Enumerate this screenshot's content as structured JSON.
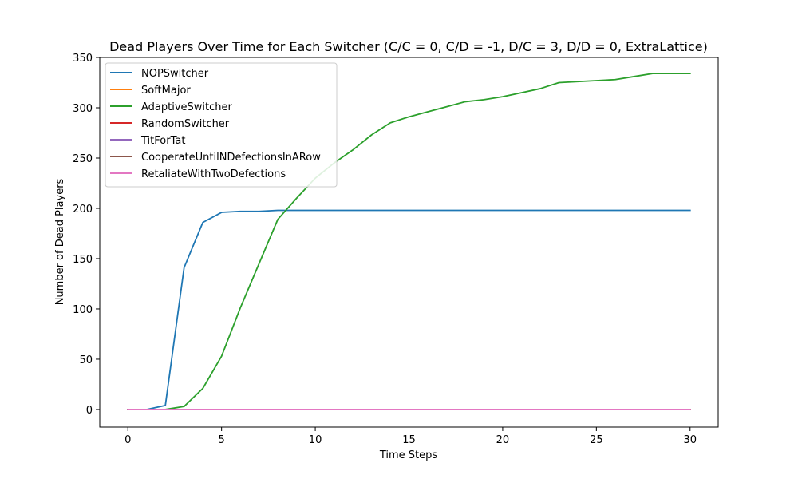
{
  "chart_data": {
    "type": "line",
    "title": "Dead Players Over Time for Each Switcher (C/C = 0, C/D = -1, D/C = 3, D/D = 0, ExtraLattice)",
    "xlabel": "Time Steps",
    "ylabel": "Number of Dead Players",
    "xlim": [
      -1.5,
      31.5
    ],
    "ylim": [
      -17.5,
      350
    ],
    "x_ticks": [
      0,
      5,
      10,
      15,
      20,
      25,
      30
    ],
    "y_ticks": [
      0,
      50,
      100,
      150,
      200,
      250,
      300,
      350
    ],
    "grid": false,
    "legend_position": "top-left",
    "x": [
      0,
      1,
      2,
      3,
      4,
      5,
      6,
      7,
      8,
      9,
      10,
      11,
      12,
      13,
      14,
      15,
      16,
      17,
      18,
      19,
      20,
      21,
      22,
      23,
      24,
      25,
      26,
      27,
      28,
      29,
      30
    ],
    "series": [
      {
        "name": "NOPSwitcher",
        "color": "#1f77b4",
        "values": [
          0,
          0,
          4,
          141,
          186,
          196,
          197,
          197,
          198,
          198,
          198,
          198,
          198,
          198,
          198,
          198,
          198,
          198,
          198,
          198,
          198,
          198,
          198,
          198,
          198,
          198,
          198,
          198,
          198,
          198,
          198
        ]
      },
      {
        "name": "SoftMajor",
        "color": "#ff7f0e",
        "values": [
          0,
          0,
          0,
          0,
          0,
          0,
          0,
          0,
          0,
          0,
          0,
          0,
          0,
          0,
          0,
          0,
          0,
          0,
          0,
          0,
          0,
          0,
          0,
          0,
          0,
          0,
          0,
          0,
          0,
          0,
          0
        ]
      },
      {
        "name": "AdaptiveSwitcher",
        "color": "#2ca02c",
        "values": [
          0,
          0,
          0,
          3,
          21,
          53,
          101,
          145,
          189,
          210,
          230,
          245,
          258,
          273,
          285,
          291,
          296,
          301,
          306,
          308,
          311,
          315,
          319,
          325,
          326,
          327,
          328,
          331,
          334,
          334,
          334
        ]
      },
      {
        "name": "RandomSwitcher",
        "color": "#d62728",
        "values": [
          0,
          0,
          0,
          0,
          0,
          0,
          0,
          0,
          0,
          0,
          0,
          0,
          0,
          0,
          0,
          0,
          0,
          0,
          0,
          0,
          0,
          0,
          0,
          0,
          0,
          0,
          0,
          0,
          0,
          0,
          0
        ]
      },
      {
        "name": "TitForTat",
        "color": "#9467bd",
        "values": [
          0,
          0,
          0,
          0,
          0,
          0,
          0,
          0,
          0,
          0,
          0,
          0,
          0,
          0,
          0,
          0,
          0,
          0,
          0,
          0,
          0,
          0,
          0,
          0,
          0,
          0,
          0,
          0,
          0,
          0,
          0
        ]
      },
      {
        "name": "CooperateUntilNDefectionsInARow",
        "color": "#8c564b",
        "values": [
          0,
          0,
          0,
          0,
          0,
          0,
          0,
          0,
          0,
          0,
          0,
          0,
          0,
          0,
          0,
          0,
          0,
          0,
          0,
          0,
          0,
          0,
          0,
          0,
          0,
          0,
          0,
          0,
          0,
          0,
          0
        ]
      },
      {
        "name": "RetaliateWithTwoDefections",
        "color": "#e377c2",
        "values": [
          0,
          0,
          0,
          0,
          0,
          0,
          0,
          0,
          0,
          0,
          0,
          0,
          0,
          0,
          0,
          0,
          0,
          0,
          0,
          0,
          0,
          0,
          0,
          0,
          0,
          0,
          0,
          0,
          0,
          0,
          0
        ]
      }
    ]
  }
}
